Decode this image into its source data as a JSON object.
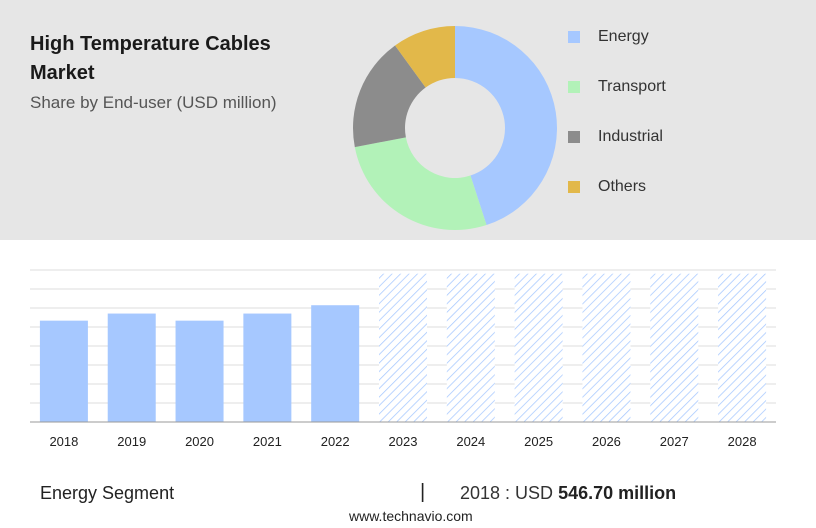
{
  "header": {
    "title": "High Temperature Cables Market",
    "subtitle": "Share by End-user (USD million)"
  },
  "chart_data": [
    {
      "type": "pie",
      "labels": [
        "Energy",
        "Transport",
        "Industrial",
        "Others"
      ],
      "values": [
        45,
        27,
        18,
        10
      ],
      "colors": [
        "#a6c8ff",
        "#b2f2b8",
        "#8c8c8c",
        "#e2b84a"
      ],
      "legend_placement": "right"
    },
    {
      "type": "bar",
      "categories": [
        "2018",
        "2019",
        "2020",
        "2021",
        "2022",
        "2023",
        "2024",
        "2025",
        "2026",
        "2027",
        "2028"
      ],
      "values": [
        546.7,
        585,
        546.7,
        585,
        630,
        null,
        null,
        null,
        null,
        null,
        null
      ],
      "forecast_categories": [
        "2023",
        "2024",
        "2025",
        "2026",
        "2027",
        "2028"
      ],
      "forecast_values": [
        800,
        800,
        800,
        800,
        800,
        800
      ],
      "ylim": [
        0,
        820
      ],
      "grid": true,
      "colors": {
        "bar": "#a6c8ff",
        "forecast_hatch": "#a6c8ff"
      }
    }
  ],
  "footer": {
    "segment": "Energy Segment",
    "divider": "|",
    "value_prefix": "2018 : USD",
    "value": "546.70 million",
    "source": "www.technavio.com"
  }
}
